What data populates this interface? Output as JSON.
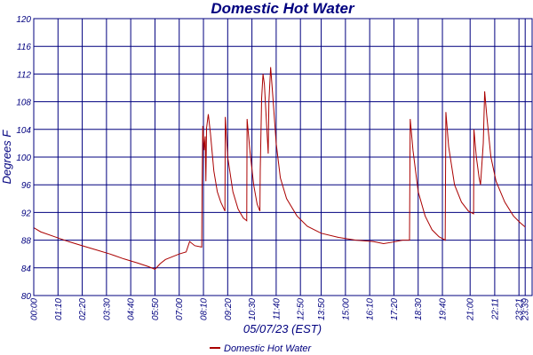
{
  "chart_data": {
    "type": "line",
    "title": "Domestic Hot Water",
    "xlabel": "05/07/23 (EST)",
    "ylabel": "Degrees F",
    "ylim": [
      80,
      120
    ],
    "yticks": [
      80,
      84,
      88,
      92,
      96,
      100,
      104,
      108,
      112,
      116,
      120
    ],
    "xlim": [
      "00:00",
      "23:59"
    ],
    "xticks": [
      "00:00",
      "01:10",
      "02:20",
      "03:30",
      "04:40",
      "05:50",
      "07:00",
      "08:10",
      "09:20",
      "10:30",
      "11:40",
      "12:50",
      "13:50",
      "15:00",
      "16:10",
      "17:20",
      "18:30",
      "19:40",
      "21:00",
      "22:11",
      "23:21",
      "23:39"
    ],
    "grid": true,
    "legend": "bottom",
    "colors": {
      "series": "#aa0000",
      "grid": "#00007f",
      "frame": "#00007f",
      "text": "#00007f"
    },
    "series": [
      {
        "name": "Domestic Hot Water",
        "points": [
          [
            "00:00",
            89.8
          ],
          [
            "00:20",
            89.2
          ],
          [
            "01:00",
            88.5
          ],
          [
            "01:40",
            87.8
          ],
          [
            "02:20",
            87.2
          ],
          [
            "03:00",
            86.6
          ],
          [
            "03:40",
            86.0
          ],
          [
            "04:20",
            85.3
          ],
          [
            "05:00",
            84.7
          ],
          [
            "05:30",
            84.2
          ],
          [
            "05:50",
            83.8
          ],
          [
            "06:05",
            84.6
          ],
          [
            "06:20",
            85.2
          ],
          [
            "06:40",
            85.6
          ],
          [
            "07:00",
            86.0
          ],
          [
            "07:20",
            86.3
          ],
          [
            "07:30",
            87.8
          ],
          [
            "07:45",
            87.2
          ],
          [
            "08:05",
            87.0
          ],
          [
            "08:06",
            95.5
          ],
          [
            "08:08",
            104.5
          ],
          [
            "08:12",
            101.0
          ],
          [
            "08:15",
            103.0
          ],
          [
            "08:17",
            96.5
          ],
          [
            "08:19",
            104.2
          ],
          [
            "08:24",
            106.2
          ],
          [
            "08:30",
            103.5
          ],
          [
            "08:40",
            98.0
          ],
          [
            "08:50",
            95.0
          ],
          [
            "09:00",
            93.5
          ],
          [
            "09:12",
            92.2
          ],
          [
            "09:13",
            105.8
          ],
          [
            "09:20",
            100.0
          ],
          [
            "09:35",
            95.0
          ],
          [
            "09:50",
            92.5
          ],
          [
            "10:05",
            91.2
          ],
          [
            "10:15",
            90.8
          ],
          [
            "10:16",
            105.5
          ],
          [
            "10:24",
            101.0
          ],
          [
            "10:35",
            96.0
          ],
          [
            "10:45",
            93.2
          ],
          [
            "10:53",
            92.2
          ],
          [
            "10:54",
            98.0
          ],
          [
            "10:58",
            108.5
          ],
          [
            "11:02",
            112.0
          ],
          [
            "11:06",
            110.5
          ],
          [
            "11:12",
            105.0
          ],
          [
            "11:17",
            100.5
          ],
          [
            "11:19",
            108.0
          ],
          [
            "11:24",
            113.0
          ],
          [
            "11:30",
            109.0
          ],
          [
            "11:40",
            102.0
          ],
          [
            "11:52",
            97.0
          ],
          [
            "12:10",
            94.0
          ],
          [
            "12:40",
            91.5
          ],
          [
            "13:10",
            90.0
          ],
          [
            "13:50",
            89.0
          ],
          [
            "14:40",
            88.4
          ],
          [
            "15:30",
            88.0
          ],
          [
            "16:20",
            87.8
          ],
          [
            "16:50",
            87.5
          ],
          [
            "17:15",
            87.7
          ],
          [
            "17:45",
            88.0
          ],
          [
            "18:05",
            88.0
          ],
          [
            "18:07",
            105.5
          ],
          [
            "18:15",
            101.0
          ],
          [
            "18:30",
            95.0
          ],
          [
            "18:50",
            91.5
          ],
          [
            "19:10",
            89.5
          ],
          [
            "19:30",
            88.5
          ],
          [
            "19:48",
            88.0
          ],
          [
            "19:50",
            106.5
          ],
          [
            "19:58",
            101.5
          ],
          [
            "20:15",
            96.0
          ],
          [
            "20:35",
            93.5
          ],
          [
            "20:55",
            92.2
          ],
          [
            "21:10",
            91.8
          ],
          [
            "21:11",
            104.0
          ],
          [
            "21:18",
            100.0
          ],
          [
            "21:26",
            97.0
          ],
          [
            "21:30",
            96.0
          ],
          [
            "21:38",
            102.0
          ],
          [
            "21:42",
            109.5
          ],
          [
            "21:48",
            106.0
          ],
          [
            "22:00",
            100.0
          ],
          [
            "22:15",
            96.5
          ],
          [
            "22:40",
            93.5
          ],
          [
            "23:05",
            91.5
          ],
          [
            "23:25",
            90.5
          ],
          [
            "23:39",
            89.9
          ]
        ]
      }
    ]
  }
}
